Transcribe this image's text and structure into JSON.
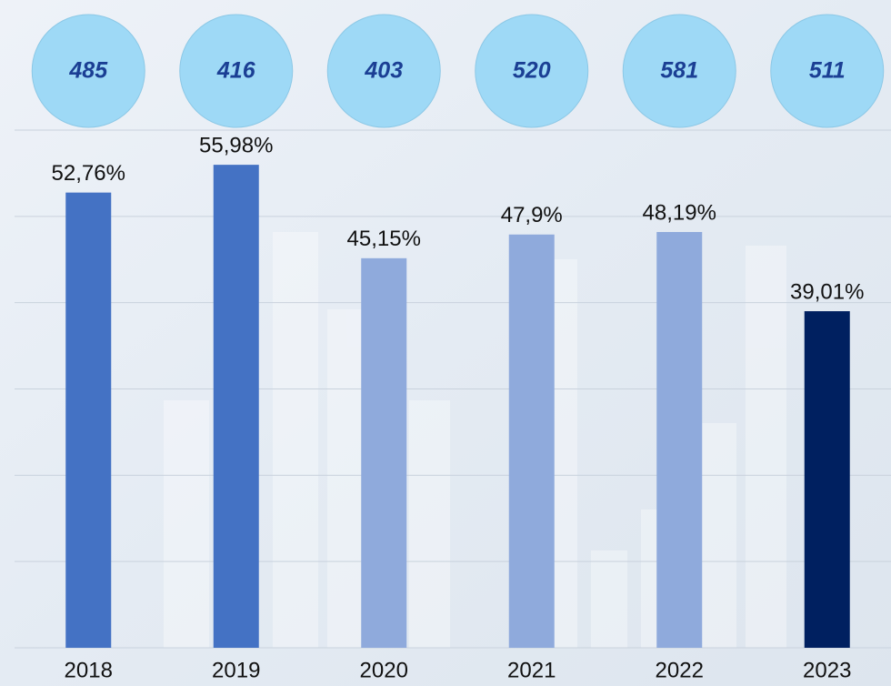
{
  "chart_data": {
    "type": "bar",
    "categories": [
      "2018",
      "2019",
      "2020",
      "2021",
      "2022",
      "2023"
    ],
    "values": [
      52.76,
      55.98,
      45.15,
      47.9,
      48.19,
      39.01
    ],
    "value_labels": [
      "52,76%",
      "55,98%",
      "45,15%",
      "47,9%",
      "48,19%",
      "39,01%"
    ],
    "colors": [
      "#4472c4",
      "#4472c4",
      "#8faadc",
      "#8faadc",
      "#8faadc",
      "#002060"
    ],
    "top_values": [
      485,
      416,
      403,
      520,
      581,
      511
    ],
    "ylim": [
      0,
      60
    ],
    "yticks": [
      0,
      10,
      20,
      30,
      40,
      50,
      60
    ],
    "grid": true
  }
}
